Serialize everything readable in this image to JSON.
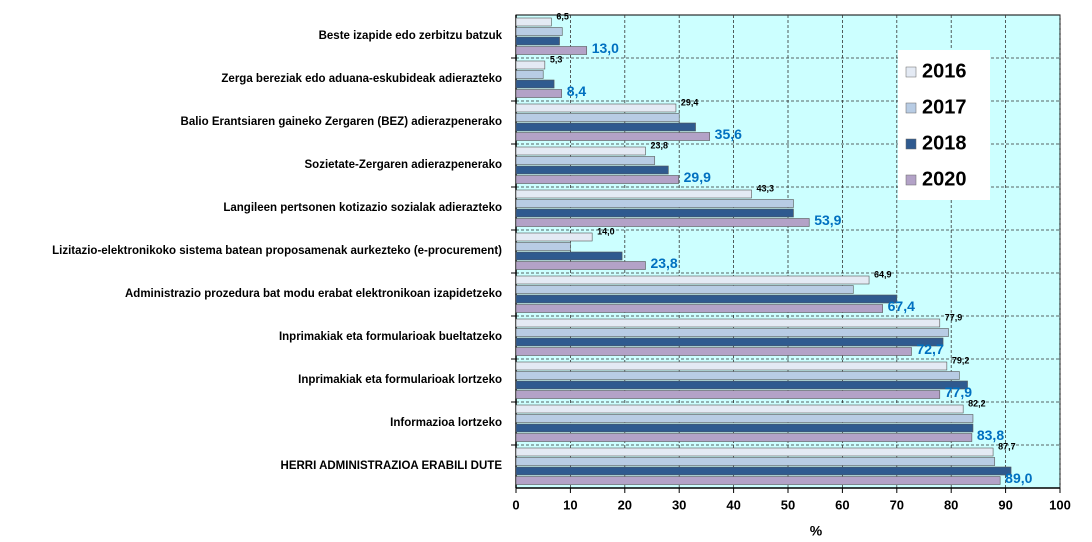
{
  "chart_data": {
    "type": "bar",
    "orientation": "horizontal",
    "categories": [
      "Beste izapide edo zerbitzu batzuk",
      "Zerga bereziak edo aduana-eskubideak adierazteko",
      "Balio Erantsiaren gaineko Zergaren (BEZ) adierazpenerako",
      "Sozietate-Zergaren adierazpenerako",
      "Langileen pertsonen kotizazio sozialak adierazteko",
      "Lizitazio-elektronikoko sistema batean proposamenak aurkezteko (e-procurement)",
      "Administrazio prozedura bat modu erabat elektronikoan izapidetzeko",
      "Inprimakiak eta formularioak bueltatzeko",
      "Inprimakiak eta formularioak lortzeko",
      "Informazioa lortzeko",
      "HERRI ADMINISTRAZIOA ERABILI DUTE"
    ],
    "series": [
      {
        "name": "2016",
        "color": "#e4eaf4",
        "values": [
          6.5,
          5.3,
          29.4,
          23.8,
          43.3,
          14.0,
          64.9,
          77.9,
          79.2,
          82.2,
          87.7
        ],
        "value_labels": [
          "6,5",
          "5,3",
          "29,4",
          "23,8",
          "43,3",
          "14,0",
          "64,9",
          "77,9",
          "79,2",
          "82,2",
          "87,7"
        ]
      },
      {
        "name": "2017",
        "color": "#b8cce4",
        "values": [
          8.5,
          5,
          30,
          25.5,
          51,
          10,
          62,
          79.5,
          81.5,
          84,
          88
        ]
      },
      {
        "name": "2018",
        "color": "#2f5a8f",
        "values": [
          8,
          7,
          33,
          28,
          51,
          19.5,
          70,
          78.5,
          83,
          84,
          91
        ]
      },
      {
        "name": "2020",
        "color": "#b3a2c7",
        "values": [
          13.0,
          8.4,
          35.6,
          29.9,
          53.9,
          23.8,
          67.4,
          72.7,
          77.9,
          83.8,
          89.0
        ],
        "value_labels": [
          "13,0",
          "8,4",
          "35,6",
          "29,9",
          "53,9",
          "23,8",
          "67,4",
          "72,7",
          "77,9",
          "83,8",
          "89,0"
        ]
      }
    ],
    "xlabel": "%",
    "xlim": [
      0,
      100
    ],
    "xticks": [
      0,
      10,
      20,
      30,
      40,
      50,
      60,
      70,
      80,
      90,
      100
    ],
    "grid": true,
    "legend": "upper right"
  }
}
